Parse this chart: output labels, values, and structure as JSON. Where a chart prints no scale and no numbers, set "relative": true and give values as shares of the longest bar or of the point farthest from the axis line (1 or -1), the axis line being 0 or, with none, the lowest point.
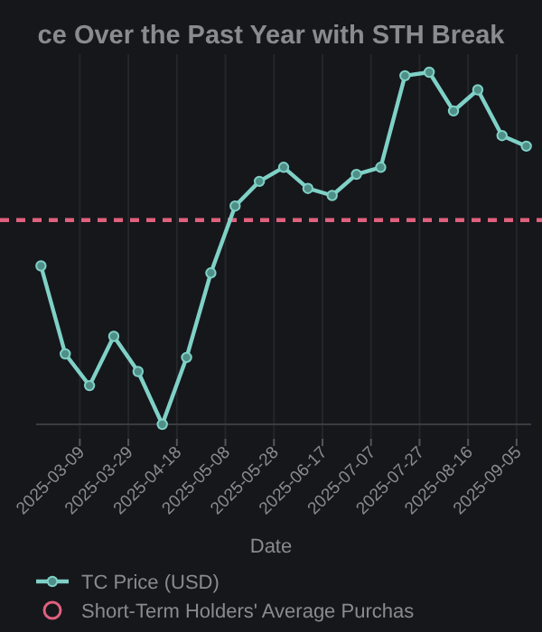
{
  "chart_data": {
    "type": "line",
    "title": "ce Over the Past Year with STH Break",
    "xlabel": "Date",
    "relative": true,
    "x": [
      "2025-02-21",
      "2025-03-03",
      "2025-03-13",
      "2025-03-23",
      "2025-04-02",
      "2025-04-12",
      "2025-04-22",
      "2025-05-02",
      "2025-05-12",
      "2025-05-22",
      "2025-06-01",
      "2025-06-11",
      "2025-06-21",
      "2025-07-01",
      "2025-07-11",
      "2025-07-21",
      "2025-07-31",
      "2025-08-10",
      "2025-08-20",
      "2025-08-30",
      "2025-09-09"
    ],
    "series": [
      {
        "name": "TC Price (USD)",
        "color": "#7fd1c7",
        "values": [
          0.45,
          0.2,
          0.11,
          0.25,
          0.15,
          0,
          0.19,
          0.43,
          0.62,
          0.69,
          0.73,
          0.67,
          0.65,
          0.71,
          0.73,
          0.99,
          1,
          0.89,
          0.95,
          0.82,
          0.79
        ]
      }
    ],
    "xlim": [
      "2025-02-19",
      "2025-09-11"
    ],
    "xticks": [
      "2025-03-09",
      "2025-03-29",
      "2025-04-18",
      "2025-05-08",
      "2025-05-28",
      "2025-06-17",
      "2025-07-07",
      "2025-07-27",
      "2025-08-16",
      "2025-09-05"
    ],
    "ref_lines": [
      {
        "axis": "y",
        "value": 0.58,
        "label": "Short-Term Holders' Average Purchas",
        "color": "#e0607e",
        "line_style": "dashed"
      }
    ],
    "grid": "x",
    "legend": "bottom",
    "marker": "circle",
    "line_style": "solid"
  }
}
